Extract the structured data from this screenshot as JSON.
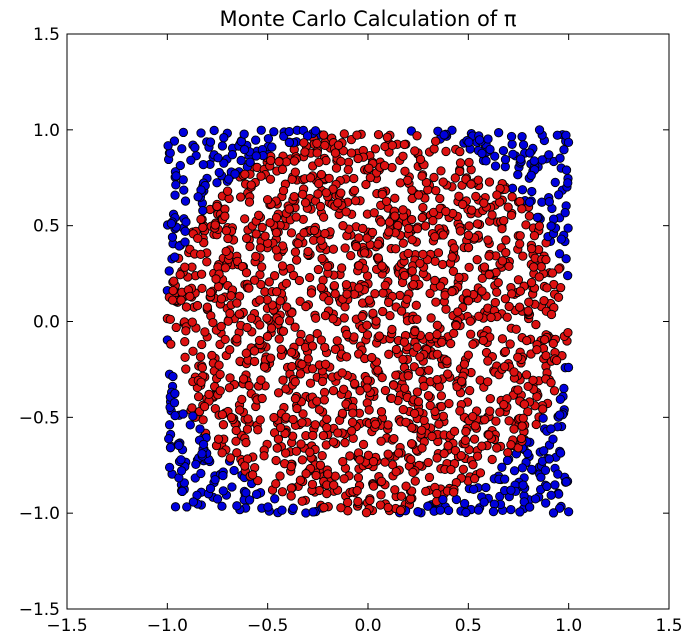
{
  "chart_data": {
    "type": "scatter",
    "title": "Monte Carlo Calculation of π",
    "xlabel": "",
    "ylabel": "",
    "xlim": [
      -1.5,
      1.5
    ],
    "ylim": [
      -1.5,
      1.5
    ],
    "grid": false,
    "legend": "none",
    "xticks": [
      -1.5,
      -1.0,
      -0.5,
      0.0,
      0.5,
      1.0,
      1.5
    ],
    "yticks": [
      -1.5,
      -1.0,
      -0.5,
      0.0,
      0.5,
      1.0,
      1.5
    ],
    "xtick_labels": [
      "−1.5",
      "−1.0",
      "−0.5",
      "0.0",
      "0.5",
      "1.0",
      "1.5"
    ],
    "ytick_labels": [
      "−1.5",
      "−1.0",
      "−0.5",
      "0.0",
      "0.5",
      "1.0",
      "1.5"
    ],
    "sampling_domain": {
      "x": [
        -1.0,
        1.0
      ],
      "y": [
        -1.0,
        1.0
      ]
    },
    "circle_radius": 1.0,
    "point_count": 2200,
    "series": [
      {
        "category": "outside-unit-circle",
        "color": "#0000dd",
        "rule": "x^2 + y^2 > 1"
      },
      {
        "category": "inside-unit-circle",
        "color": "#dd1111",
        "rule": "x^2 + y^2 <= 1"
      }
    ],
    "marker_edge_color": "#000000"
  }
}
